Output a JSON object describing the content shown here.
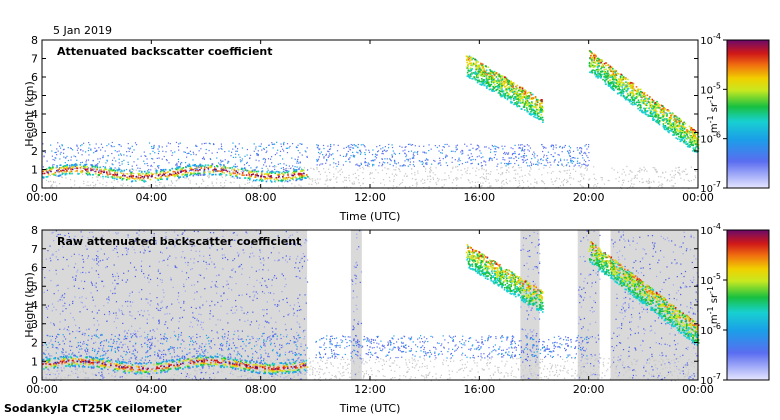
{
  "date_label": "5 Jan 2019",
  "footer_label": "Sodankyla CT25K ceilometer",
  "chart_data": [
    {
      "type": "heatmap",
      "title": "Attenuated backscatter coefficient",
      "xlabel": "Time (UTC)",
      "ylabel": "Height (km)",
      "xlim": [
        0,
        24
      ],
      "ylim": [
        0,
        8
      ],
      "x_ticks": [
        "00:00",
        "04:00",
        "08:00",
        "12:00",
        "16:00",
        "20:00",
        "00:00"
      ],
      "y_ticks": [
        "0",
        "1",
        "2",
        "3",
        "4",
        "5",
        "6",
        "7",
        "8"
      ],
      "grid": false,
      "colorbar": {
        "scale": "log",
        "range": [
          1e-07,
          0.0001
        ],
        "ticks": [
          {
            "base": "10",
            "exp": "-4"
          },
          {
            "base": "10",
            "exp": "-5"
          },
          {
            "base": "10",
            "exp": "-6"
          },
          {
            "base": "10",
            "exp": "-7"
          }
        ],
        "unit_label": "m",
        "unit_exp1": "-1",
        "unit_mid": " sr",
        "unit_exp2": "-1"
      },
      "features": [
        {
          "kind": "boundary_layer",
          "from_h": 0,
          "to_h": 9.7,
          "height_km": 0.85
        },
        {
          "kind": "clouds",
          "from_h": 15.5,
          "to_h": 18.3,
          "height_km": [
            4.5,
            7.3
          ]
        },
        {
          "kind": "clouds",
          "from_h": 20.0,
          "to_h": 24.0,
          "height_km": [
            2.5,
            7.5
          ]
        }
      ]
    },
    {
      "type": "heatmap",
      "title": "Raw attenuated backscatter coefficient",
      "xlabel": "Time (UTC)",
      "ylabel": "Height (km)",
      "xlim": [
        0,
        24
      ],
      "ylim": [
        0,
        8
      ],
      "x_ticks": [
        "00:00",
        "04:00",
        "08:00",
        "12:00",
        "16:00",
        "20:00",
        "00:00"
      ],
      "y_ticks": [
        "0",
        "1",
        "2",
        "3",
        "4",
        "5",
        "6",
        "7",
        "8"
      ],
      "grid": false,
      "colorbar": {
        "scale": "log",
        "range": [
          1e-07,
          0.0001
        ],
        "ticks": [
          {
            "base": "10",
            "exp": "-4"
          },
          {
            "base": "10",
            "exp": "-5"
          },
          {
            "base": "10",
            "exp": "-6"
          },
          {
            "base": "10",
            "exp": "-7"
          }
        ],
        "unit_label": "m",
        "unit_exp1": "-1",
        "unit_mid": " sr",
        "unit_exp2": "-1"
      },
      "features": [
        {
          "kind": "noise_block",
          "from_h": 0,
          "to_h": 9.7
        },
        {
          "kind": "noise_block",
          "from_h": 11.3,
          "to_h": 11.7
        },
        {
          "kind": "noise_block",
          "from_h": 17.5,
          "to_h": 18.2
        },
        {
          "kind": "noise_block",
          "from_h": 19.6,
          "to_h": 20.4
        },
        {
          "kind": "noise_block",
          "from_h": 20.8,
          "to_h": 24.0
        },
        {
          "kind": "boundary_layer",
          "from_h": 0,
          "to_h": 9.7,
          "height_km": 0.85
        },
        {
          "kind": "clouds",
          "from_h": 15.5,
          "to_h": 18.3,
          "height_km": [
            4.5,
            7.3
          ]
        },
        {
          "kind": "clouds",
          "from_h": 20.0,
          "to_h": 24.0,
          "height_km": [
            2.5,
            7.5
          ]
        }
      ]
    }
  ]
}
